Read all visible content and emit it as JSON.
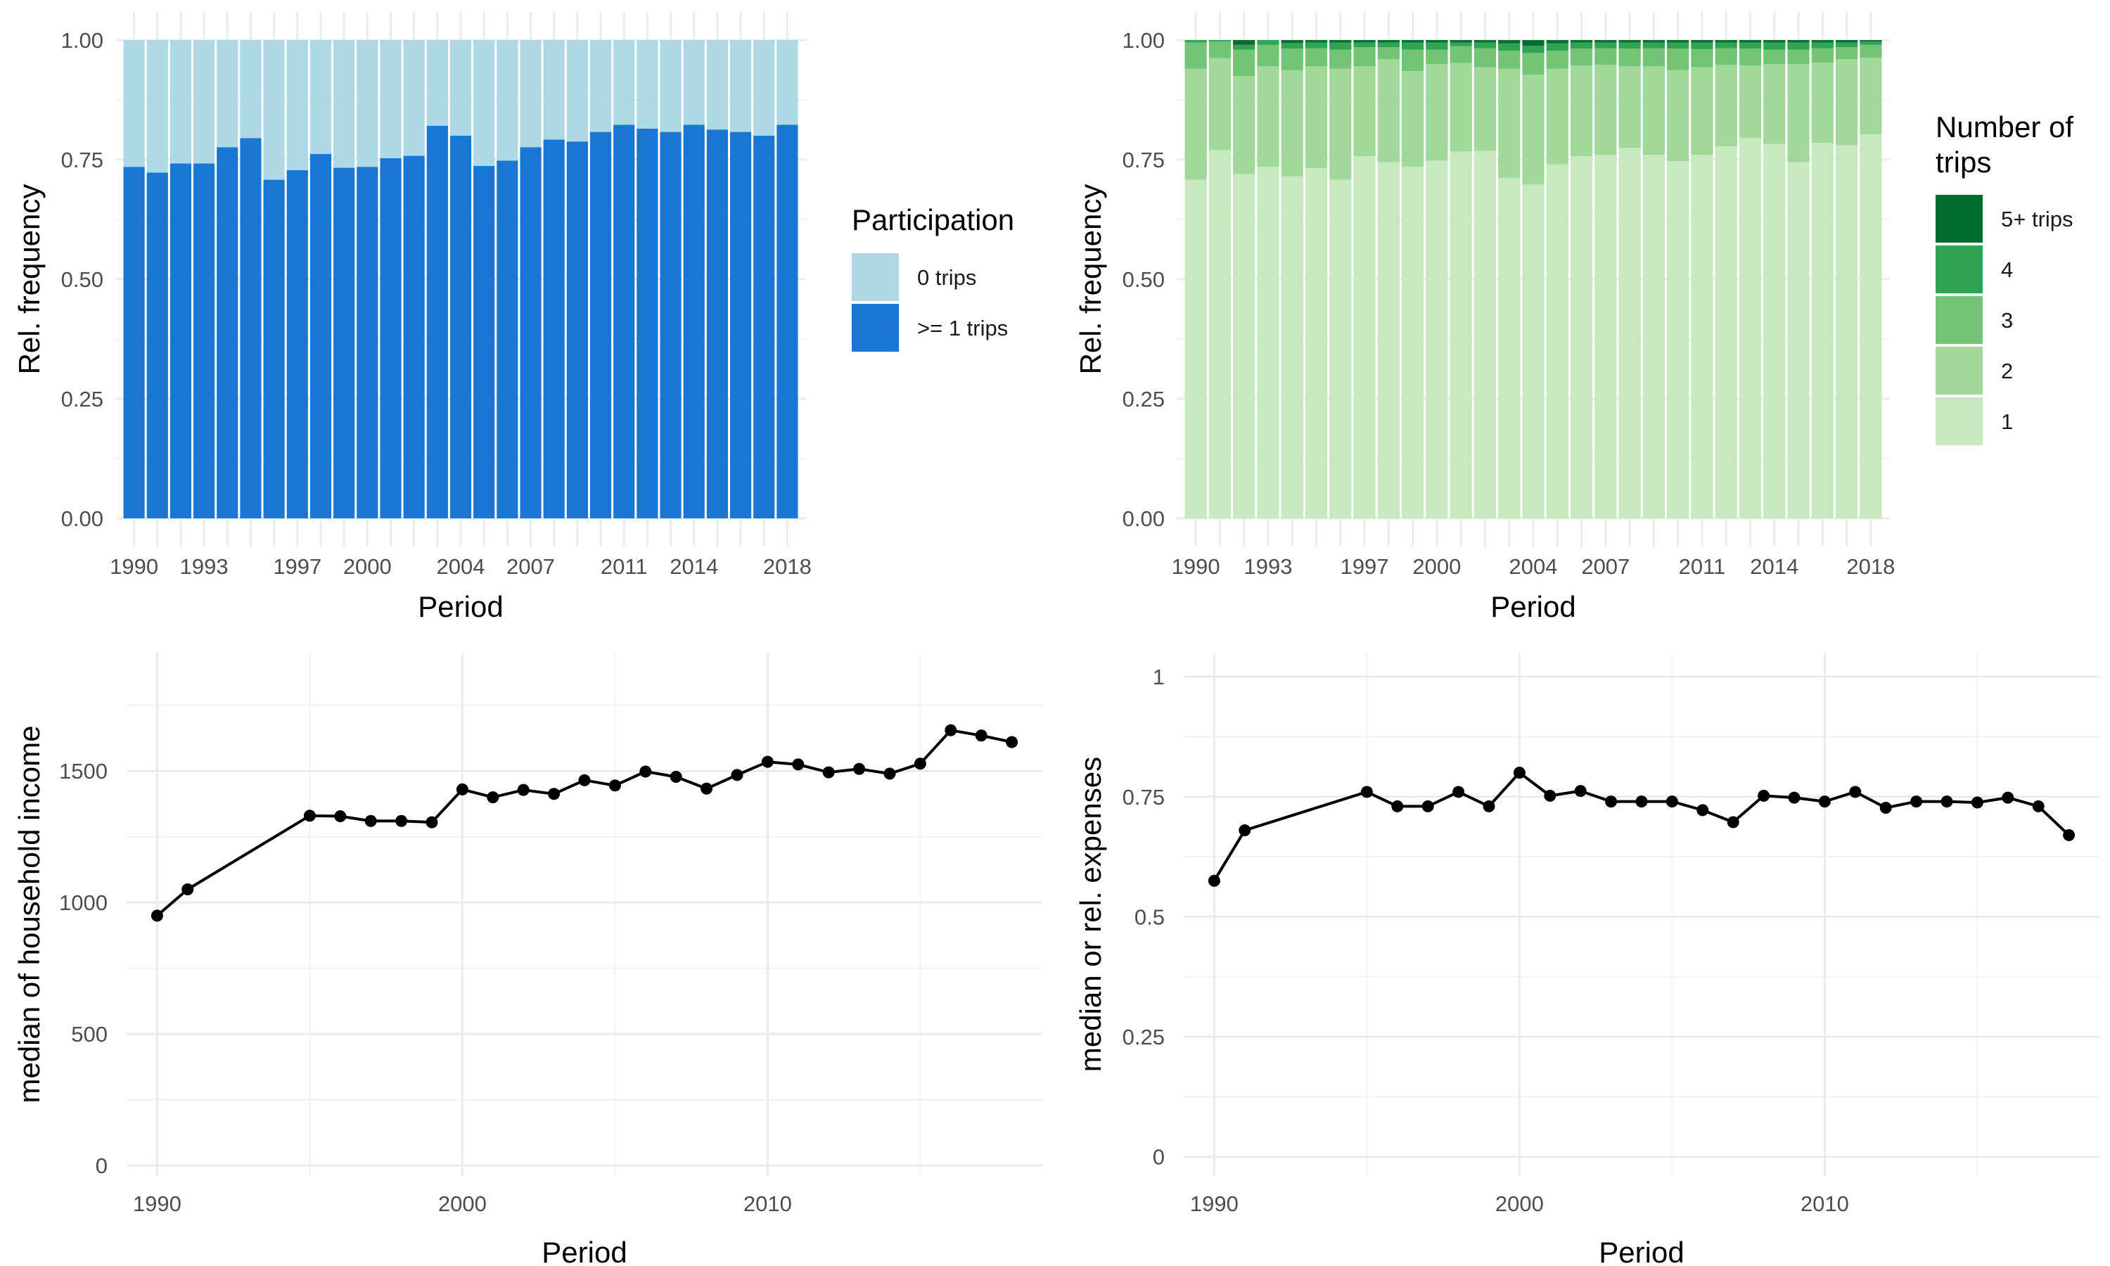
{
  "chart_data": [
    {
      "type": "bar",
      "stacked": true,
      "xlabel": "Period",
      "ylabel": "Rel. frequency",
      "ylim": [
        0,
        1
      ],
      "yticks": [
        "0.00",
        "0.25",
        "0.50",
        "0.75",
        "1.00"
      ],
      "grid": true,
      "legend_title": "Participation",
      "legend_position": "right",
      "categories": [
        1990,
        1991,
        1992,
        1993,
        1994,
        1995,
        1996,
        1997,
        1998,
        1999,
        2000,
        2001,
        2002,
        2003,
        2004,
        2005,
        2006,
        2007,
        2008,
        2009,
        2010,
        2011,
        2012,
        2013,
        2014,
        2015,
        2016,
        2017,
        2018
      ],
      "tick_labels": [
        "1990",
        "1993",
        "1997",
        "2000",
        "2004",
        "2007",
        "2011",
        "2014",
        "2018"
      ],
      "tick_categories": [
        1990,
        1993,
        1997,
        2000,
        2004,
        2007,
        2011,
        2014,
        2018
      ],
      "series": [
        {
          "name": ">= 1 trips",
          "color": "#1976d2",
          "values": [
            0.735,
            0.723,
            0.742,
            0.742,
            0.776,
            0.795,
            0.708,
            0.728,
            0.762,
            0.733,
            0.735,
            0.753,
            0.758,
            0.821,
            0.8,
            0.737,
            0.748,
            0.776,
            0.792,
            0.788,
            0.808,
            0.823,
            0.815,
            0.808,
            0.823,
            0.813,
            0.808,
            0.8,
            0.823
          ]
        },
        {
          "name": "0 trips",
          "color": "#add8e6",
          "values": [
            0.265,
            0.277,
            0.258,
            0.258,
            0.224,
            0.205,
            0.292,
            0.272,
            0.238,
            0.267,
            0.265,
            0.247,
            0.242,
            0.179,
            0.2,
            0.263,
            0.252,
            0.224,
            0.208,
            0.212,
            0.192,
            0.177,
            0.185,
            0.192,
            0.177,
            0.187,
            0.192,
            0.2,
            0.177
          ]
        }
      ],
      "legend_order": [
        "0 trips",
        ">= 1 trips"
      ]
    },
    {
      "type": "bar",
      "stacked": true,
      "xlabel": "Period",
      "ylabel": "Rel. frequency",
      "ylim": [
        0,
        1
      ],
      "yticks": [
        "0.00",
        "0.25",
        "0.50",
        "0.75",
        "1.00"
      ],
      "grid": true,
      "legend_title": [
        "Number of",
        "trips"
      ],
      "legend_position": "right",
      "categories": [
        1990,
        1991,
        1992,
        1993,
        1994,
        1995,
        1996,
        1997,
        1998,
        1999,
        2000,
        2001,
        2002,
        2003,
        2004,
        2005,
        2006,
        2007,
        2008,
        2009,
        2010,
        2011,
        2012,
        2013,
        2014,
        2015,
        2016,
        2017,
        2018
      ],
      "tick_labels": [
        "1990",
        "1993",
        "1997",
        "2000",
        "2004",
        "2007",
        "2011",
        "2014",
        "2018"
      ],
      "tick_categories": [
        1990,
        1993,
        1997,
        2000,
        2004,
        2007,
        2011,
        2014,
        2018
      ],
      "series": [
        {
          "name": "1",
          "color": "#c7e9c0",
          "values": [
            0.708,
            0.77,
            0.72,
            0.735,
            0.715,
            0.732,
            0.708,
            0.757,
            0.745,
            0.735,
            0.748,
            0.767,
            0.768,
            0.712,
            0.698,
            0.74,
            0.757,
            0.76,
            0.775,
            0.76,
            0.747,
            0.76,
            0.778,
            0.795,
            0.783,
            0.745,
            0.785,
            0.78,
            0.803
          ]
        },
        {
          "name": "2",
          "color": "#a1d99b",
          "values": [
            0.232,
            0.192,
            0.205,
            0.21,
            0.222,
            0.213,
            0.232,
            0.188,
            0.215,
            0.2,
            0.202,
            0.185,
            0.175,
            0.228,
            0.23,
            0.2,
            0.19,
            0.188,
            0.17,
            0.185,
            0.19,
            0.183,
            0.17,
            0.152,
            0.167,
            0.205,
            0.168,
            0.18,
            0.16
          ]
        },
        {
          "name": "3",
          "color": "#74c476",
          "values": [
            0.055,
            0.035,
            0.055,
            0.045,
            0.045,
            0.038,
            0.04,
            0.04,
            0.025,
            0.045,
            0.03,
            0.035,
            0.04,
            0.038,
            0.045,
            0.038,
            0.035,
            0.035,
            0.037,
            0.038,
            0.045,
            0.038,
            0.035,
            0.035,
            0.03,
            0.03,
            0.03,
            0.025,
            0.027
          ]
        },
        {
          "name": "4",
          "color": "#31a354",
          "values": [
            0.005,
            0.003,
            0.01,
            0.01,
            0.012,
            0.012,
            0.015,
            0.01,
            0.01,
            0.015,
            0.015,
            0.008,
            0.012,
            0.015,
            0.015,
            0.015,
            0.013,
            0.012,
            0.013,
            0.012,
            0.013,
            0.014,
            0.012,
            0.013,
            0.015,
            0.015,
            0.012,
            0.01,
            0.007
          ]
        },
        {
          "name": "5+ trips",
          "color": "#006d2c",
          "values": [
            0.0,
            0.0,
            0.01,
            0.0,
            0.006,
            0.005,
            0.005,
            0.005,
            0.005,
            0.005,
            0.005,
            0.005,
            0.005,
            0.007,
            0.012,
            0.007,
            0.005,
            0.005,
            0.005,
            0.005,
            0.005,
            0.005,
            0.005,
            0.005,
            0.005,
            0.005,
            0.005,
            0.005,
            0.003
          ]
        }
      ],
      "legend_order": [
        "5+ trips",
        "4",
        "3",
        "2",
        "1"
      ]
    },
    {
      "type": "line",
      "xlabel": "Period",
      "ylabel": "median of household income",
      "xlim": [
        1989,
        2019
      ],
      "ylim": [
        -40,
        1950
      ],
      "xticks": [
        1990,
        2000,
        2010
      ],
      "yticks": [
        0,
        500,
        1000,
        1500
      ],
      "grid": true,
      "x": [
        1990,
        1991,
        1995,
        1996,
        1997,
        1998,
        1999,
        2000,
        2001,
        2002,
        2003,
        2004,
        2005,
        2006,
        2007,
        2008,
        2009,
        2010,
        2011,
        2012,
        2013,
        2014,
        2015,
        2016,
        2017,
        2018
      ],
      "y": [
        950,
        1050,
        1330,
        1328,
        1310,
        1310,
        1305,
        1430,
        1400,
        1428,
        1413,
        1465,
        1445,
        1498,
        1478,
        1433,
        1485,
        1535,
        1525,
        1495,
        1508,
        1490,
        1528,
        1655,
        1635,
        1610
      ]
    },
    {
      "type": "line",
      "xlabel": "Period",
      "ylabel": "median or rel. expenses",
      "xlim": [
        1989,
        2019
      ],
      "ylim": [
        -0.04,
        1.05
      ],
      "xticks": [
        1990,
        2000,
        2010
      ],
      "yticks": [
        "0",
        "0.25",
        "0.5",
        "0.75",
        "1"
      ],
      "ytick_values": [
        0,
        0.25,
        0.5,
        0.75,
        1
      ],
      "grid": true,
      "x": [
        1990,
        1991,
        1995,
        1996,
        1997,
        1998,
        1999,
        2000,
        2001,
        2002,
        2003,
        2004,
        2005,
        2006,
        2007,
        2008,
        2009,
        2010,
        2011,
        2012,
        2013,
        2014,
        2015,
        2016,
        2017,
        2018
      ],
      "y": [
        0.575,
        0.68,
        0.76,
        0.73,
        0.73,
        0.76,
        0.73,
        0.8,
        0.752,
        0.762,
        0.74,
        0.74,
        0.74,
        0.722,
        0.697,
        0.752,
        0.748,
        0.74,
        0.76,
        0.727,
        0.74,
        0.74,
        0.738,
        0.748,
        0.73,
        0.67
      ]
    }
  ]
}
